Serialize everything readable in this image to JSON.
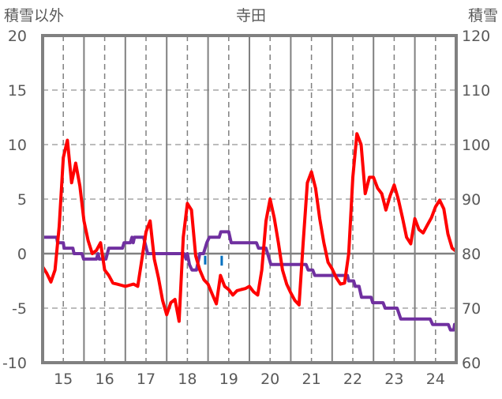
{
  "chart_data": {
    "type": "line",
    "title": "寺田",
    "ylabel_left": "積雪以外",
    "ylabel_right": "積雪",
    "xlim": [
      14.5,
      24.5
    ],
    "ylim_left": [
      -10,
      20
    ],
    "ylim_right": [
      60,
      120
    ],
    "x_ticks": [
      "15",
      "16",
      "17",
      "18",
      "19",
      "20",
      "21",
      "22",
      "23",
      "24"
    ],
    "x_tick_values": [
      15,
      16,
      17,
      18,
      19,
      20,
      21,
      22,
      23,
      24
    ],
    "y_left_ticks": [
      "20",
      "15",
      "10",
      "5",
      "0",
      "-5",
      "-10"
    ],
    "y_left_tick_values": [
      20,
      15,
      10,
      5,
      0,
      -5,
      -10
    ],
    "y_right_ticks": [
      "120",
      "110",
      "100",
      "90",
      "80",
      "70",
      "60"
    ],
    "y_right_tick_values": [
      120,
      110,
      100,
      90,
      80,
      70,
      60
    ],
    "grid": true,
    "series": [
      {
        "name": "積雪以外",
        "axis": "left",
        "color": "#ff0000",
        "x_start": 14.5,
        "x_step": 0.1,
        "values": [
          -1.2,
          -1.8,
          -2.6,
          -1.5,
          2.5,
          8.8,
          10.4,
          6.5,
          8.3,
          6.2,
          3.0,
          1.2,
          0.0,
          0.3,
          1.0,
          -1.5,
          -2.0,
          -2.7,
          -2.8,
          -2.9,
          -3.0,
          -2.9,
          -2.8,
          -3.0,
          -0.5,
          2.0,
          3.0,
          -0.5,
          -2.2,
          -4.3,
          -5.6,
          -4.5,
          -4.2,
          -6.2,
          1.5,
          4.6,
          4.0,
          -0.2,
          -1.5,
          -2.4,
          -2.8,
          -3.7,
          -4.6,
          -2.0,
          -3.0,
          -3.3,
          -3.8,
          -3.4,
          -3.3,
          -3.2,
          -3.0,
          -3.5,
          -3.8,
          -1.5,
          3.0,
          5.0,
          3.3,
          1.0,
          -1.5,
          -2.8,
          -3.6,
          -4.3,
          -4.7,
          1.0,
          6.5,
          7.5,
          6.0,
          3.2,
          1.0,
          -0.8,
          -1.4,
          -2.2,
          -2.8,
          -2.7,
          0.0,
          7.0,
          11.0,
          10.0,
          5.5,
          7.0,
          7.0,
          6.0,
          5.5,
          4.0,
          5.3,
          6.3,
          5.0,
          3.3,
          1.5,
          0.9,
          3.2,
          2.2,
          1.9,
          2.6,
          3.3,
          4.3,
          4.9,
          4.1,
          1.8,
          0.5,
          0.2
        ]
      },
      {
        "name": "積雪",
        "axis": "right",
        "color": "#7030a0",
        "points": [
          [
            14.5,
            83
          ],
          [
            14.84,
            83
          ],
          [
            14.86,
            82
          ],
          [
            15.0,
            82
          ],
          [
            15.02,
            81
          ],
          [
            15.23,
            81
          ],
          [
            15.26,
            80
          ],
          [
            15.45,
            80
          ],
          [
            15.49,
            79
          ],
          [
            15.8,
            79
          ],
          [
            15.84,
            80
          ],
          [
            15.87,
            79
          ],
          [
            16.03,
            79
          ],
          [
            16.1,
            81
          ],
          [
            16.43,
            81
          ],
          [
            16.47,
            82
          ],
          [
            16.62,
            82
          ],
          [
            16.66,
            83
          ],
          [
            16.69,
            82
          ],
          [
            16.72,
            83
          ],
          [
            16.94,
            83
          ],
          [
            17.04,
            80
          ],
          [
            17.92,
            80
          ],
          [
            17.97,
            79
          ],
          [
            18.0,
            80
          ],
          [
            18.05,
            78
          ],
          [
            18.11,
            77
          ],
          [
            18.22,
            77
          ],
          [
            18.3,
            80
          ],
          [
            18.39,
            80
          ],
          [
            18.47,
            82
          ],
          [
            18.53,
            83
          ],
          [
            18.77,
            83
          ],
          [
            18.81,
            84
          ],
          [
            19.0,
            84
          ],
          [
            19.06,
            82
          ],
          [
            19.67,
            82
          ],
          [
            19.72,
            81
          ],
          [
            19.9,
            81
          ],
          [
            20.02,
            78
          ],
          [
            20.87,
            78
          ],
          [
            20.92,
            77
          ],
          [
            21.03,
            77
          ],
          [
            21.08,
            76
          ],
          [
            21.87,
            76
          ],
          [
            21.9,
            75
          ],
          [
            22.02,
            75
          ],
          [
            22.06,
            74
          ],
          [
            22.15,
            74
          ],
          [
            22.21,
            72
          ],
          [
            22.44,
            72
          ],
          [
            22.48,
            71
          ],
          [
            22.73,
            71
          ],
          [
            22.78,
            70
          ],
          [
            23.07,
            70
          ],
          [
            23.16,
            68
          ],
          [
            23.87,
            68
          ],
          [
            23.93,
            67
          ],
          [
            24.31,
            67
          ],
          [
            24.36,
            66
          ],
          [
            24.44,
            66
          ],
          [
            24.46,
            67
          ],
          [
            24.5,
            66
          ]
        ]
      },
      {
        "name": "marker",
        "axis": "left",
        "color": "#0070c0",
        "segments": [
          [
            18.43,
            -0.2,
            -1.0
          ],
          [
            18.83,
            -0.2,
            -1.1
          ]
        ]
      }
    ]
  }
}
